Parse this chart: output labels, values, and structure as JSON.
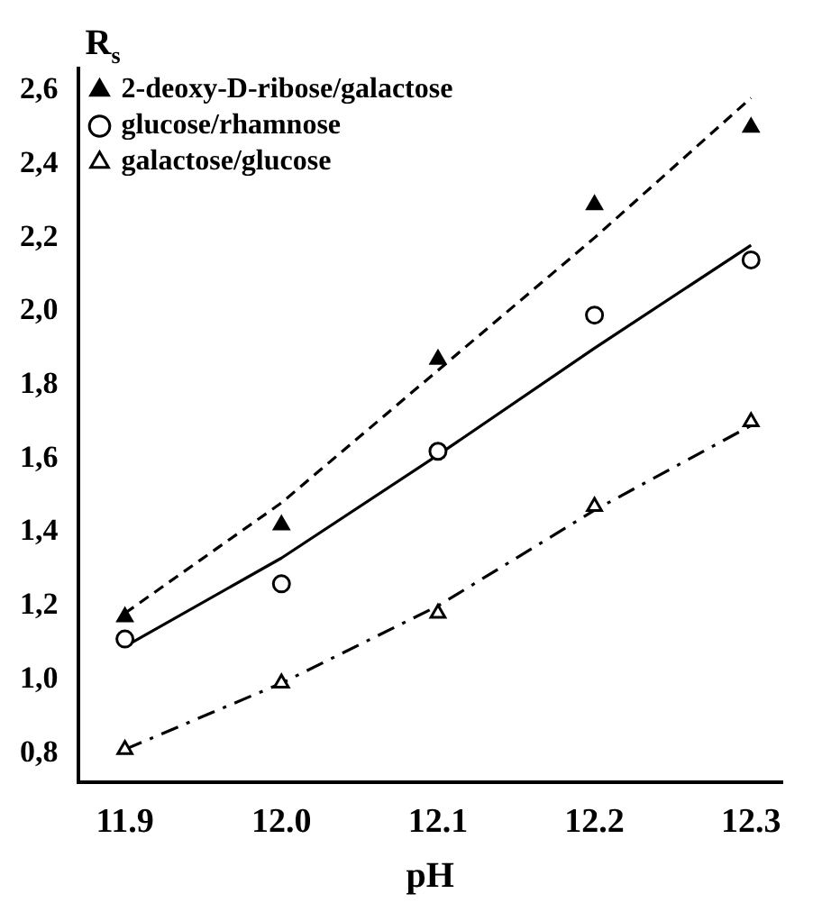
{
  "chart_data": {
    "type": "scatter",
    "xlabel": "pH",
    "ylabel": "R$_{s}$",
    "xlim": [
      11.87,
      12.32
    ],
    "xticks": [
      11.9,
      {
        "value": 12.0,
        "label": "12.0"
      },
      12.1,
      12.2,
      12.3
    ],
    "ylim": [
      0.72,
      2.66
    ],
    "yticks": [
      {
        "value": 0.8,
        "label": "0,8"
      },
      {
        "value": 1.0,
        "label": "1,0"
      },
      {
        "value": 1.2,
        "label": "1,2"
      },
      {
        "value": 1.4,
        "label": "1,4"
      },
      {
        "value": 1.6,
        "label": "1,6"
      },
      {
        "value": 1.8,
        "label": "1,8"
      },
      {
        "value": 2.0,
        "label": "2,0"
      },
      {
        "value": 2.2,
        "label": "2,2"
      },
      {
        "value": 2.4,
        "label": "2,4"
      },
      {
        "value": 2.6,
        "label": "2,6"
      }
    ],
    "grid": false,
    "legend": "top left",
    "x": [
      11.9,
      12.0,
      12.1,
      12.2,
      12.3
    ],
    "series": [
      {
        "name": "2-deoxy-D-ribose/galactose",
        "type": "scatter",
        "marker": "triangle",
        "color": "#000000",
        "values": [
          1.17,
          1.42,
          1.87,
          2.29,
          2.5
        ]
      },
      {
        "name": "glucose/rhamnose",
        "type": "scatter",
        "marker": "circle",
        "color": "#ffffff",
        "values": [
          1.11,
          1.26,
          1.62,
          1.99,
          2.14
        ]
      },
      {
        "name": "galactose/glucose",
        "type": "scatter",
        "marker": "triangle",
        "color": "#ffffff",
        "values": [
          0.81,
          0.99,
          1.18,
          1.47,
          1.7
        ]
      },
      {
        "type": "line",
        "line_style": "dashed",
        "marker": "none",
        "color": "#000000",
        "values": [
          1.18,
          1.48,
          1.84,
          2.2,
          2.58
        ]
      },
      {
        "type": "line",
        "line_style": "solid",
        "marker": "none",
        "color": "#000000",
        "values": [
          1.09,
          1.33,
          1.61,
          1.9,
          2.18
        ]
      },
      {
        "type": "line",
        "line_style": "dashdot",
        "marker": "none",
        "color": "#000000",
        "values": [
          0.81,
          0.99,
          1.2,
          1.46,
          1.69
        ]
      }
    ]
  }
}
